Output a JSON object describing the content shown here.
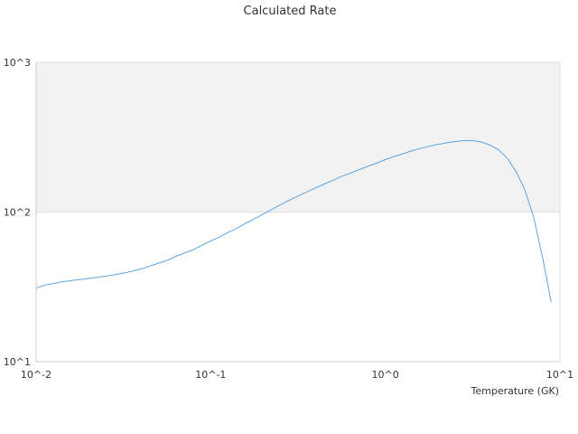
{
  "chart_data": {
    "type": "line",
    "title": "Calculated Rate",
    "xlabel": "Temperature (GK)",
    "ylabel": "",
    "xscale": "log",
    "yscale": "log",
    "xlim": [
      0.01,
      10
    ],
    "ylim": [
      10,
      1000
    ],
    "x_ticks": [
      "10^-2",
      "10^-1",
      "10^0",
      "10^1"
    ],
    "y_ticks": [
      "10^1",
      "10^2",
      "10^3"
    ],
    "grid": true,
    "legend": "none",
    "colors": {
      "line": "#5da5e0",
      "band": "#f2f2f2",
      "grid": "#dddddd"
    },
    "series": [
      {
        "x": [
          0.01,
          0.0112,
          0.0126,
          0.0141,
          0.0158,
          0.0178,
          0.02,
          0.0224,
          0.0251,
          0.0282,
          0.0316,
          0.0355,
          0.0398,
          0.0447,
          0.0501,
          0.0562,
          0.0631,
          0.0708,
          0.0794,
          0.0891,
          0.1,
          0.1122,
          0.1259,
          0.1413,
          0.1585,
          0.1778,
          0.1995,
          0.2239,
          0.2512,
          0.2818,
          0.3162,
          0.3548,
          0.3981,
          0.4467,
          0.5012,
          0.5623,
          0.631,
          0.7079,
          0.7943,
          0.8913,
          1.0,
          1.122,
          1.259,
          1.413,
          1.585,
          1.778,
          1.995,
          2.239,
          2.512,
          2.818,
          3.162,
          3.548,
          3.981,
          4.467,
          5.012,
          5.623,
          6.31,
          7.079,
          7.943,
          8.913
        ],
        "y": [
          31,
          32.5,
          33.3,
          34.2,
          34.8,
          35.4,
          36.0,
          36.6,
          37.3,
          38.1,
          39.1,
          40.2,
          41.6,
          43.6,
          45.5,
          47.5,
          50.5,
          53.2,
          56.0,
          60.0,
          64.0,
          68.0,
          73.0,
          78.0,
          84.0,
          90.0,
          97.0,
          104,
          112,
          120,
          128,
          136,
          145,
          154,
          163,
          173,
          182,
          192,
          202,
          212,
          224,
          235,
          245,
          256,
          266,
          275,
          283,
          290,
          296,
          300,
          300,
          294,
          280,
          260,
          228,
          185,
          140,
          92,
          50,
          25
        ]
      }
    ]
  }
}
